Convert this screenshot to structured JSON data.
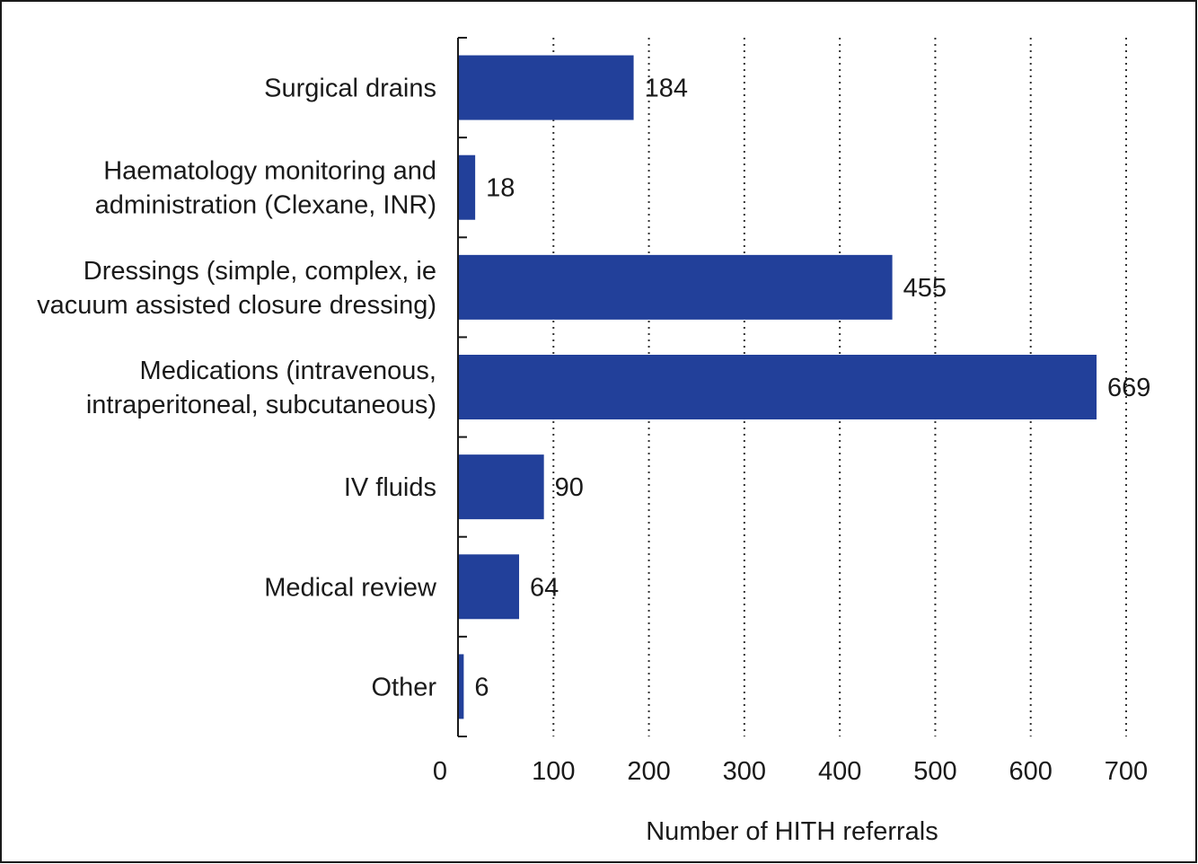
{
  "chart_data": {
    "type": "bar",
    "orientation": "horizontal",
    "categories": [
      [
        "Surgical drains"
      ],
      [
        "Haematology monitoring and",
        "administration (Clexane, INR)"
      ],
      [
        "Dressings (simple, complex, ie",
        "vacuum assisted closure dressing)"
      ],
      [
        "Medications (intravenous,",
        "intraperitoneal, subcutaneous)"
      ],
      [
        "IV fluids"
      ],
      [
        "Medical review"
      ],
      [
        "Other"
      ]
    ],
    "values": [
      184,
      18,
      455,
      669,
      90,
      64,
      6
    ],
    "data_labels": [
      "184",
      "18",
      "455",
      "669",
      "90",
      "64",
      "6"
    ],
    "xlabel": "Number of HITH referrals",
    "ylabel": "",
    "title": "",
    "xlim": [
      0,
      700
    ],
    "xticks": [
      "0",
      "100",
      "200",
      "300",
      "400",
      "500",
      "600",
      "700"
    ],
    "grid": "vertical dotted",
    "legend": "none",
    "bar_color": "#22409a"
  }
}
